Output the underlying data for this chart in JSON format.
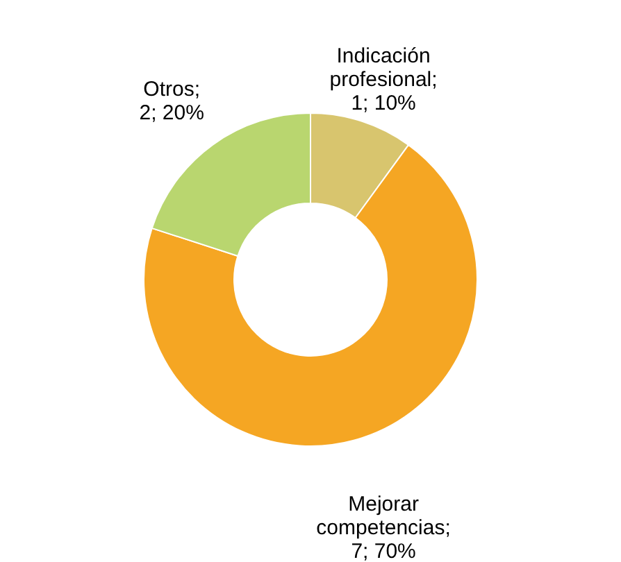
{
  "chart_data": {
    "type": "donut",
    "categories": [
      "Indicación profesional",
      "Mejorar competencias",
      "Otros"
    ],
    "values": [
      1,
      7,
      2
    ],
    "colors": [
      "#d8c56e",
      "#f5a623",
      "#b9d66f"
    ],
    "value_labels": [
      "; 1; 10%",
      "; 7; 70%",
      "; 2; 20%"
    ],
    "legend": false
  }
}
